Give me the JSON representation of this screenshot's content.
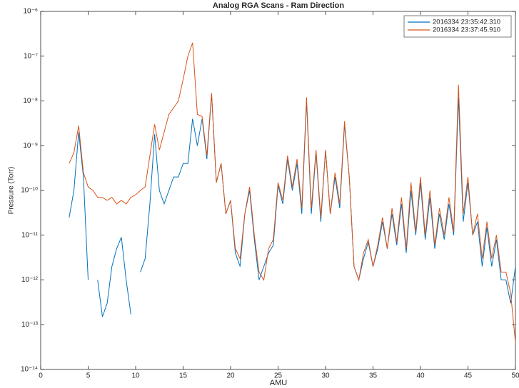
{
  "chart_data": {
    "type": "line",
    "title": "Analog RGA Scans - Ram Direction",
    "xlabel": "AMU",
    "ylabel": "Pressure (Torr)",
    "log_y": true,
    "legend": "upper right",
    "xlim": [
      0,
      50
    ],
    "xticks": [
      0,
      5,
      10,
      15,
      20,
      25,
      30,
      35,
      40,
      45,
      50
    ],
    "ylim": [
      1e-14,
      1e-06
    ],
    "yticks": [
      {
        "value": 1e-14,
        "label": "10⁻¹⁴"
      },
      {
        "value": 1e-13,
        "label": "10⁻¹³"
      },
      {
        "value": 1e-12,
        "label": "10⁻¹²"
      },
      {
        "value": 1e-11,
        "label": "10⁻¹¹"
      },
      {
        "value": 1e-10,
        "label": "10⁻¹⁰"
      },
      {
        "value": 1e-09,
        "label": "10⁻⁹"
      },
      {
        "value": 1e-08,
        "label": "10⁻⁸"
      },
      {
        "value": 1e-07,
        "label": "10⁻⁷"
      },
      {
        "value": 1e-06,
        "label": "10⁻⁶"
      }
    ],
    "x": [
      3,
      3.5,
      4,
      4.5,
      5,
      5.5,
      6,
      6.5,
      7,
      7.5,
      8,
      8.5,
      9,
      9.5,
      10,
      10.5,
      11,
      11.5,
      12,
      12.5,
      13,
      13.5,
      14,
      14.5,
      15,
      15.5,
      16,
      16.5,
      17,
      17.5,
      18,
      18.5,
      19,
      19.5,
      20,
      20.5,
      21,
      21.5,
      22,
      22.5,
      23,
      23.5,
      24,
      24.5,
      25,
      25.5,
      26,
      26.5,
      27,
      27.5,
      28,
      28.5,
      29,
      29.5,
      30,
      30.5,
      31,
      31.5,
      32,
      32.5,
      33,
      33.5,
      34,
      34.5,
      35,
      35.5,
      36,
      36.5,
      37,
      37.5,
      38,
      38.5,
      39,
      39.5,
      40,
      40.5,
      41,
      41.5,
      42,
      42.5,
      43,
      43.5,
      44,
      44.5,
      45,
      45.5,
      46,
      46.5,
      47,
      47.5,
      48,
      48.5,
      49,
      49.5,
      50
    ],
    "series": [
      {
        "name": "2016334 23:35:42.310",
        "color": "#0072bd",
        "values": [
          2.5e-11,
          1e-10,
          2e-09,
          2e-10,
          1e-12,
          null,
          1e-12,
          1.5e-13,
          3e-13,
          2e-12,
          5e-12,
          9e-12,
          1e-12,
          1.7e-13,
          null,
          1.5e-12,
          3e-12,
          5e-11,
          1.8e-09,
          1e-10,
          5e-11,
          1e-10,
          2e-10,
          2e-10,
          4e-10,
          4e-10,
          4e-09,
          1e-09,
          4e-09,
          5e-10,
          1.4e-08,
          1.5e-10,
          4e-10,
          3e-11,
          6e-11,
          4e-12,
          2e-12,
          3e-11,
          1e-10,
          8e-12,
          1e-12,
          2e-12,
          4e-12,
          6e-12,
          1.3e-10,
          5e-11,
          5e-10,
          1e-10,
          4e-10,
          3e-11,
          1e-08,
          3e-11,
          7e-10,
          2e-11,
          8e-10,
          3e-11,
          2e-10,
          4e-11,
          3e-09,
          2e-10,
          2e-12,
          1e-12,
          3e-12,
          7e-12,
          2e-12,
          5e-12,
          2e-11,
          5e-12,
          3e-11,
          6e-12,
          5e-11,
          4e-12,
          1e-10,
          1e-11,
          1.5e-10,
          8e-12,
          7e-11,
          5e-12,
          3e-11,
          8e-12,
          5e-11,
          1e-11,
          1.2e-08,
          2e-11,
          1.5e-10,
          1e-11,
          2e-11,
          2e-12,
          1.5e-11,
          2e-12,
          8e-12,
          1e-12,
          1e-12,
          3e-13,
          2e-12
        ]
      },
      {
        "name": "2016334 23:37:45.910",
        "color": "#d95319",
        "values": [
          4e-10,
          7e-10,
          2.8e-09,
          2.5e-10,
          1.2e-10,
          1e-10,
          7e-11,
          7e-11,
          6e-11,
          7e-11,
          5e-11,
          6e-11,
          5e-11,
          7e-11,
          8e-11,
          1e-10,
          1.2e-10,
          6e-10,
          3e-09,
          8e-10,
          2e-09,
          5e-09,
          7e-09,
          1e-08,
          3e-08,
          1e-07,
          2e-07,
          5e-09,
          4.5e-09,
          6e-10,
          1.5e-08,
          1.5e-10,
          4e-10,
          3e-11,
          6e-11,
          5e-12,
          3e-12,
          3e-11,
          1.2e-10,
          1e-11,
          1.5e-12,
          1e-12,
          5e-12,
          8e-12,
          1.5e-10,
          6e-11,
          6e-10,
          1.2e-10,
          5e-10,
          4e-11,
          1.2e-08,
          4e-11,
          8e-10,
          2.5e-11,
          8e-10,
          3e-11,
          2.5e-10,
          5e-11,
          3.5e-09,
          2e-10,
          2e-12,
          1e-12,
          4e-12,
          8e-12,
          2e-12,
          6e-12,
          2.5e-11,
          5e-12,
          4e-11,
          7e-12,
          7e-11,
          5e-12,
          1.5e-10,
          1.2e-11,
          2e-10,
          1e-11,
          1e-10,
          6e-12,
          4e-11,
          1e-11,
          7e-11,
          1.2e-11,
          2.3e-08,
          3e-11,
          2e-10,
          1e-11,
          3e-11,
          3e-12,
          2e-11,
          3e-12,
          1e-11,
          1.5e-12,
          1.5e-12,
          5e-13,
          4e-14
        ]
      }
    ]
  }
}
